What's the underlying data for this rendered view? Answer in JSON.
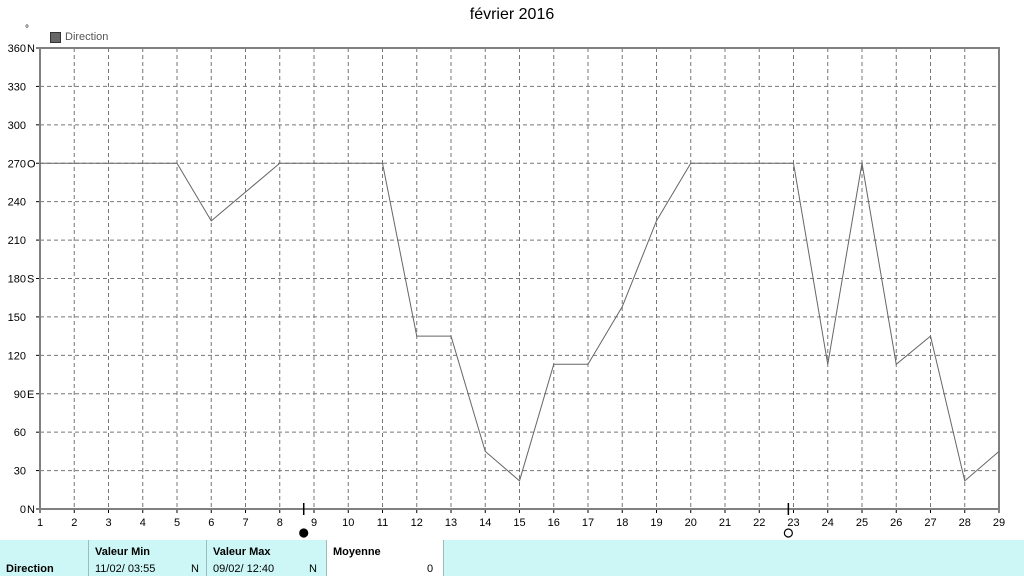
{
  "chart_data": {
    "type": "line",
    "title": "février 2016",
    "unit_mark": "°",
    "legend": "Direction",
    "legend_placement": "top-left",
    "grid": true,
    "series": [
      {
        "name": "Direction",
        "x": [
          1,
          5,
          6,
          8,
          11,
          12,
          13,
          14,
          15,
          16,
          17,
          18,
          19,
          20,
          21,
          22,
          23,
          24,
          25,
          26,
          27,
          28,
          29
        ],
        "values": [
          270,
          270,
          225,
          270,
          270,
          135,
          135,
          45,
          22,
          113,
          113,
          158,
          225,
          270,
          270,
          270,
          270,
          113,
          270,
          113,
          135,
          22,
          45
        ]
      }
    ],
    "xlim": [
      1,
      29
    ],
    "ylim": [
      0,
      360
    ],
    "x_ticks": [
      "1",
      "2",
      "3",
      "4",
      "5",
      "6",
      "7",
      "8",
      "9",
      "10",
      "11",
      "12",
      "13",
      "14",
      "15",
      "16",
      "17",
      "18",
      "19",
      "20",
      "21",
      "22",
      "23",
      "24",
      "25",
      "26",
      "27",
      "28",
      "29"
    ],
    "y_ticks": [
      {
        "value": 0,
        "label": "0",
        "dir": "N"
      },
      {
        "value": 30,
        "label": "30",
        "dir": ""
      },
      {
        "value": 60,
        "label": "60",
        "dir": ""
      },
      {
        "value": 90,
        "label": "90",
        "dir": "E"
      },
      {
        "value": 120,
        "label": "120",
        "dir": ""
      },
      {
        "value": 150,
        "label": "150",
        "dir": ""
      },
      {
        "value": 180,
        "label": "180",
        "dir": "S"
      },
      {
        "value": 210,
        "label": "210",
        "dir": ""
      },
      {
        "value": 240,
        "label": "240",
        "dir": ""
      },
      {
        "value": 270,
        "label": "270",
        "dir": "O"
      },
      {
        "value": 300,
        "label": "300",
        "dir": ""
      },
      {
        "value": 330,
        "label": "330",
        "dir": ""
      },
      {
        "value": 360,
        "label": "360",
        "dir": "N"
      }
    ],
    "markers": [
      {
        "x": 8.7,
        "kind": "filled"
      },
      {
        "x": 22.85,
        "kind": "open"
      }
    ]
  },
  "stats": {
    "row_label": "Direction",
    "min_label": "Valeur Min",
    "min_value": "11/02/  03:55",
    "min_unit": "N",
    "max_label": "Valeur Max",
    "max_value": "09/02/  12:40",
    "max_unit": "N",
    "avg_label": "Moyenne",
    "avg_value": "0"
  }
}
